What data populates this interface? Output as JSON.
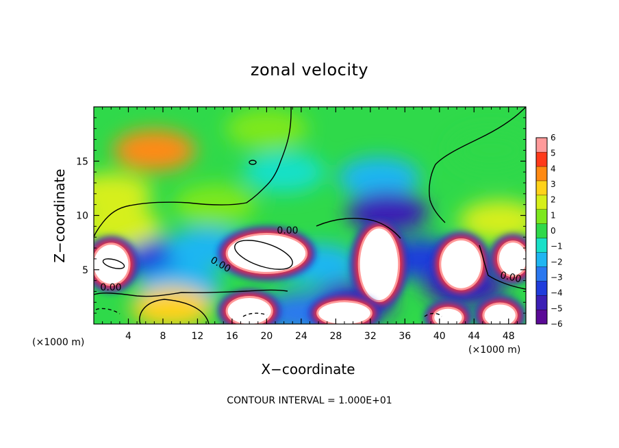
{
  "chart_data": {
    "type": "heatmap",
    "title": "zonal velocity",
    "xlabel": "X−coordinate",
    "ylabel": "Z−coordinate",
    "x_unit_left": "(×1000 m)",
    "x_unit_right": "(×1000 m)",
    "xlim": [
      0,
      50
    ],
    "ylim": [
      0,
      20
    ],
    "xticks": [
      4,
      8,
      12,
      16,
      20,
      24,
      28,
      32,
      36,
      40,
      44,
      48
    ],
    "yticks": [
      5,
      10,
      15
    ],
    "colorbar": {
      "min": -6,
      "max": 6,
      "ticks": [
        "6",
        "5",
        "4",
        "3",
        "2",
        "1",
        "0",
        "−1",
        "−2",
        "−3",
        "−4",
        "−5",
        "−6"
      ],
      "colors": [
        "#5a0a96",
        "#3b1fb5",
        "#1f3cdc",
        "#2a78f0",
        "#1fb6f2",
        "#19e0c8",
        "#2fd94a",
        "#7de81e",
        "#d6ef1a",
        "#ffd21a",
        "#ff8a12",
        "#ff3a1a",
        "#ff9a9a"
      ]
    },
    "contour_labels": [
      "0.00",
      "0.00",
      "0.00",
      "0.00"
    ],
    "features": [
      {
        "x": 7,
        "z": 16,
        "u": 3.5
      },
      {
        "x": 20,
        "z": 18,
        "u": 1.2
      },
      {
        "x": 2,
        "z": 12,
        "u": 1.5
      },
      {
        "x": 33,
        "z": 13.5,
        "u": -2.5
      },
      {
        "x": 34,
        "z": 10.3,
        "u": -5
      },
      {
        "x": 22,
        "z": 14,
        "u": -1.2
      },
      {
        "x": 46,
        "z": 16,
        "u": 0.3
      },
      {
        "x": 14,
        "z": 11,
        "u": 0.5
      },
      {
        "x": 47,
        "z": 9.5,
        "u": 1.5
      },
      {
        "x": 8,
        "z": 6,
        "u": -4.5
      },
      {
        "x": 13,
        "z": 7,
        "u": -2.5
      },
      {
        "x": 10,
        "z": 3.5,
        "u": -2
      },
      {
        "x": 26,
        "z": 5.5,
        "u": -2.5
      },
      {
        "x": 3,
        "z": 9,
        "u": 2
      },
      {
        "x": 9,
        "z": 1.5,
        "u": 3
      },
      {
        "x": 30,
        "z": 2,
        "u": -5
      },
      {
        "x": 38,
        "z": 6,
        "u": -4
      },
      {
        "x": 43,
        "z": 3.5,
        "u": -5
      },
      {
        "x": 24,
        "z": 1,
        "u": -3
      }
    ],
    "saturated_regions": [
      {
        "x": 2,
        "z": 5.5,
        "rx": 2,
        "rz": 1.8
      },
      {
        "x": 20,
        "z": 6.5,
        "rx": 4.5,
        "rz": 1.7
      },
      {
        "x": 33,
        "z": 5.5,
        "rx": 2.2,
        "rz": 3.3
      },
      {
        "x": 18,
        "z": 1.2,
        "rx": 2.5,
        "rz": 1.2
      },
      {
        "x": 29,
        "z": 1,
        "rx": 3,
        "rz": 1.0
      },
      {
        "x": 42.5,
        "z": 5.5,
        "rx": 2.3,
        "rz": 2.2
      },
      {
        "x": 48.5,
        "z": 6,
        "rx": 1.6,
        "rz": 1.5
      },
      {
        "x": 47,
        "z": 0.8,
        "rx": 1.8,
        "rz": 1.0
      },
      {
        "x": 41,
        "z": 0.6,
        "rx": 1.6,
        "rz": 0.8
      }
    ]
  },
  "contour_interval": "CONTOUR INTERVAL = 1.000E+01"
}
